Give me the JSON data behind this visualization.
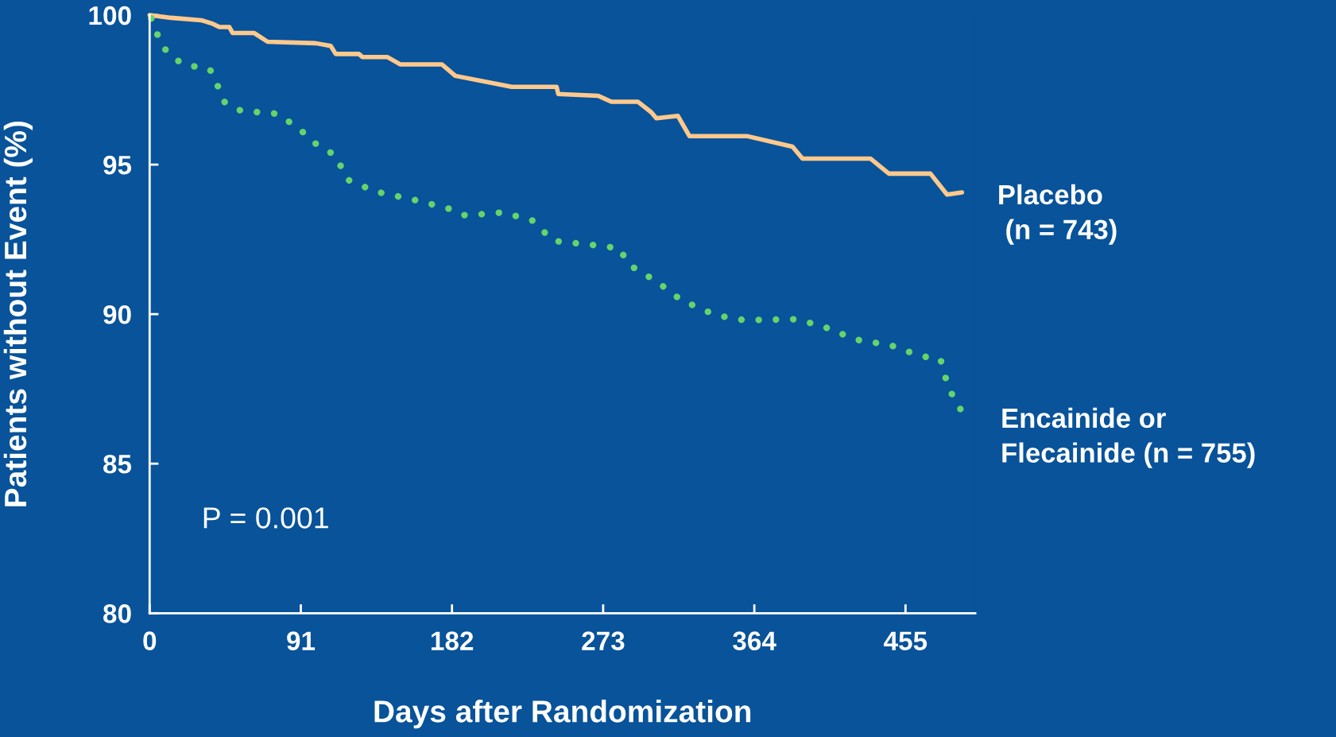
{
  "chart_data": {
    "type": "line",
    "xlabel": "Days after Randomization",
    "ylabel": "Patients without Event (%)",
    "xlim": [
      0,
      497
    ],
    "ylim": [
      80,
      100
    ],
    "xticks": [
      0,
      91,
      182,
      273,
      364,
      455
    ],
    "yticks": [
      80,
      85,
      90,
      95,
      100
    ],
    "grid": false,
    "legend": false,
    "marker": "none",
    "annotations": [
      "P = 0.001"
    ],
    "series": [
      {
        "name": "Placebo\n (n = 743)",
        "color": "#ffc98c",
        "line_style": "solid",
        "x": [
          0,
          13,
          31,
          38,
          42,
          48,
          50,
          63,
          71,
          100,
          109,
          112,
          126,
          128,
          143,
          151,
          176,
          184,
          218,
          245,
          246,
          270,
          278,
          294,
          302,
          305,
          318,
          325,
          360,
          387,
          393,
          434,
          445,
          470,
          480,
          489
        ],
        "values": [
          100,
          99.91,
          99.83,
          99.71,
          99.6,
          99.6,
          99.4,
          99.4,
          99.11,
          99.06,
          98.97,
          98.7,
          98.7,
          98.6,
          98.6,
          98.35,
          98.35,
          97.97,
          97.6,
          97.6,
          97.36,
          97.3,
          97.1,
          97.1,
          96.75,
          96.55,
          96.63,
          95.95,
          95.95,
          95.6,
          95.2,
          95.2,
          94.7,
          94.7,
          94.0,
          94.07
        ]
      },
      {
        "name": "Encainide or\nFlecainide (n = 755)",
        "color": "#66d36b",
        "line_style": "dotted",
        "x": [
          1,
          4,
          7,
          12,
          20,
          36,
          38,
          45,
          55,
          77,
          90,
          100,
          112,
          119,
          136,
          161,
          182,
          190,
          212,
          230,
          243,
          269,
          283,
          288,
          305,
          320,
          341,
          358,
          389,
          405,
          425,
          446,
          464,
          476,
          480,
          485,
          491
        ],
        "values": [
          99.89,
          99.46,
          99.0,
          98.7,
          98.35,
          98.2,
          98.03,
          97.1,
          96.8,
          96.7,
          96.2,
          95.7,
          95.3,
          94.5,
          94.1,
          93.8,
          93.5,
          93.3,
          93.4,
          93.15,
          92.45,
          92.3,
          92.2,
          91.67,
          91.1,
          90.47,
          89.96,
          89.8,
          89.83,
          89.6,
          89.15,
          88.96,
          88.6,
          88.5,
          87.7,
          87.06,
          86.6
        ]
      }
    ]
  }
}
